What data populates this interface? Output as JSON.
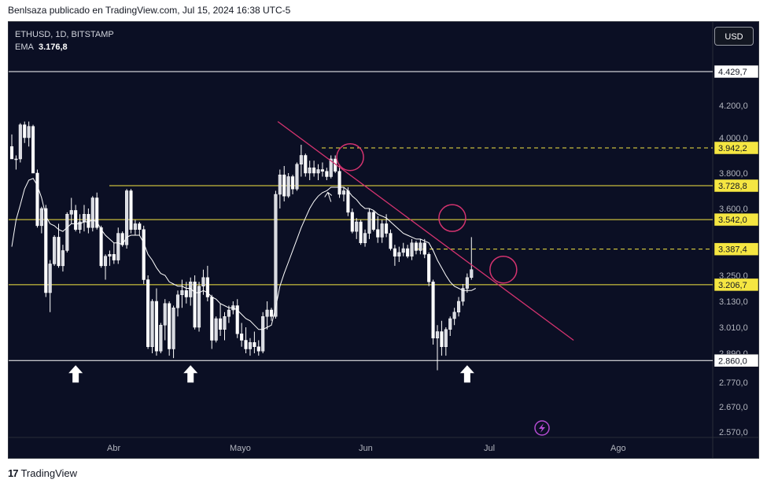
{
  "header": {
    "publisher": "Benlsaza publicado en TradingView.com, Jul 15, 2024 16:38 UTC-5"
  },
  "legend": {
    "symbol": "ETHUSD, 1D, BITSTAMP",
    "indicator": "EMA",
    "indicator_value": "3.176,8"
  },
  "currency_button": "USD",
  "footer": {
    "logo_mark": "17",
    "brand": "TradingView"
  },
  "colors": {
    "background": "#0b0f24",
    "candle": "#ffffff",
    "ema": "#ffffff",
    "resistance": "#f5e642",
    "support_white": "#ffffff",
    "trendline": "#d4336f",
    "circle": "#d4336f"
  },
  "chart_data": {
    "type": "line",
    "title": "ETHUSD, 1D, BITSTAMP",
    "x_labels": [
      "Abr",
      "Mayo",
      "Jun",
      "Jul",
      "Ago"
    ],
    "y_ticks": [
      "4.200,0",
      "4.000,0",
      "3.800,0",
      "3.600,0",
      "3.250,0",
      "3.130,0",
      "3.010,0",
      "2.890,0",
      "2.770,0",
      "2.670,0",
      "2.570,0"
    ],
    "y_tick_values": [
      4200,
      4000,
      3800,
      3600,
      3250,
      3130,
      3010,
      2890,
      2770,
      2670,
      2570
    ],
    "levels": [
      {
        "label": "4.429,7",
        "value": 4429.7,
        "color": "#ffffff",
        "style": "solid"
      },
      {
        "label": "3.942,2",
        "value": 3942.2,
        "color": "#f5e642",
        "style": "dashed"
      },
      {
        "label": "3.728,8",
        "value": 3728.8,
        "color": "#f5e642",
        "style": "solid"
      },
      {
        "label": "3.542,0",
        "value": 3542.0,
        "color": "#f5e642",
        "style": "solid"
      },
      {
        "label": "3.387,4",
        "value": 3387.4,
        "color": "#f5e642",
        "style": "dashed"
      },
      {
        "label": "3.206,7",
        "value": 3206.7,
        "color": "#f5e642",
        "style": "solid"
      },
      {
        "label": "2.860,0",
        "value": 2860.0,
        "color": "#ffffff",
        "style": "solid"
      }
    ],
    "trendline": {
      "from": {
        "x": 62.5,
        "y": 4100
      },
      "to": {
        "x": 132,
        "y": 2950
      }
    },
    "circles": [
      {
        "x": 79.5,
        "y": 3890
      },
      {
        "x": 103.5,
        "y": 3550
      },
      {
        "x": 115.5,
        "y": 3280
      }
    ],
    "support_arrows": [
      {
        "x": 15,
        "y": 2860
      },
      {
        "x": 42,
        "y": 2860
      },
      {
        "x": 107,
        "y": 2860
      }
    ],
    "candles": [
      [
        3950,
        4020,
        3880,
        3880
      ],
      [
        3880,
        3900,
        3820,
        3880
      ],
      [
        3880,
        4090,
        3860,
        4080
      ],
      [
        4080,
        4100,
        3970,
        4000
      ],
      [
        4000,
        4100,
        3950,
        4070
      ],
      [
        4070,
        4080,
        3800,
        3800
      ],
      [
        3800,
        3820,
        3500,
        3510
      ],
      [
        3510,
        3610,
        3470,
        3600
      ],
      [
        3600,
        3620,
        3150,
        3170
      ],
      [
        3170,
        3330,
        3080,
        3310
      ],
      [
        3310,
        3460,
        3300,
        3450
      ],
      [
        3450,
        3520,
        3290,
        3300
      ],
      [
        3300,
        3410,
        3270,
        3380
      ],
      [
        3380,
        3580,
        3370,
        3570
      ],
      [
        3570,
        3660,
        3520,
        3590
      ],
      [
        3590,
        3620,
        3480,
        3490
      ],
      [
        3490,
        3570,
        3470,
        3530
      ],
      [
        3530,
        3620,
        3480,
        3570
      ],
      [
        3570,
        3600,
        3470,
        3500
      ],
      [
        3500,
        3670,
        3480,
        3660
      ],
      [
        3660,
        3690,
        3490,
        3500
      ],
      [
        3500,
        3510,
        3290,
        3300
      ],
      [
        3300,
        3360,
        3230,
        3350
      ],
      [
        3350,
        3380,
        3300,
        3360
      ],
      [
        3360,
        3420,
        3310,
        3330
      ],
      [
        3330,
        3500,
        3310,
        3470
      ],
      [
        3470,
        3480,
        3400,
        3410
      ],
      [
        3410,
        3710,
        3390,
        3700
      ],
      [
        3700,
        3710,
        3470,
        3490
      ],
      [
        3490,
        3540,
        3460,
        3520
      ],
      [
        3520,
        3530,
        3460,
        3490
      ],
      [
        3490,
        3510,
        3210,
        3230
      ],
      [
        3230,
        3250,
        2910,
        2920
      ],
      [
        2920,
        3140,
        2890,
        3130
      ],
      [
        3130,
        3190,
        2880,
        2900
      ],
      [
        2900,
        3030,
        2890,
        3020
      ],
      [
        3020,
        3140,
        2950,
        3120
      ],
      [
        3120,
        3130,
        2880,
        2910
      ],
      [
        2910,
        3110,
        2870,
        3100
      ],
      [
        3100,
        3180,
        3060,
        3160
      ],
      [
        3160,
        3230,
        3100,
        3180
      ],
      [
        3180,
        3220,
        3120,
        3150
      ],
      [
        3150,
        3240,
        3110,
        3220
      ],
      [
        3220,
        3250,
        3000,
        3010
      ],
      [
        3010,
        3220,
        2990,
        3200
      ],
      [
        3200,
        3280,
        3160,
        3240
      ],
      [
        3240,
        3300,
        3130,
        3150
      ],
      [
        3150,
        3160,
        2910,
        2950
      ],
      [
        2950,
        3060,
        2940,
        3050
      ],
      [
        3050,
        3120,
        2970,
        3000
      ],
      [
        3000,
        3080,
        2950,
        3060
      ],
      [
        3060,
        3110,
        3030,
        3090
      ],
      [
        3090,
        3130,
        3070,
        3110
      ],
      [
        3110,
        3140,
        2960,
        2980
      ],
      [
        2980,
        3030,
        2920,
        2950
      ],
      [
        2950,
        3010,
        2890,
        2910
      ],
      [
        2910,
        2960,
        2880,
        2940
      ],
      [
        2940,
        2990,
        2890,
        2920
      ],
      [
        2920,
        2950,
        2880,
        2900
      ],
      [
        2900,
        3080,
        2890,
        3060
      ],
      [
        3060,
        3130,
        3000,
        3090
      ],
      [
        3090,
        3100,
        3040,
        3060
      ],
      [
        3060,
        3700,
        3050,
        3680
      ],
      [
        3680,
        3820,
        3600,
        3790
      ],
      [
        3790,
        3840,
        3640,
        3670
      ],
      [
        3670,
        3800,
        3660,
        3780
      ],
      [
        3780,
        3790,
        3680,
        3710
      ],
      [
        3710,
        3860,
        3700,
        3850
      ],
      [
        3850,
        3960,
        3780,
        3900
      ],
      [
        3900,
        3910,
        3780,
        3800
      ],
      [
        3800,
        3870,
        3760,
        3830
      ],
      [
        3830,
        3870,
        3780,
        3800
      ],
      [
        3800,
        3850,
        3760,
        3820
      ],
      [
        3820,
        3860,
        3780,
        3810
      ],
      [
        3810,
        3830,
        3760,
        3780
      ],
      [
        3780,
        3900,
        3770,
        3880
      ],
      [
        3880,
        3900,
        3800,
        3810
      ],
      [
        3810,
        3850,
        3660,
        3680
      ],
      [
        3680,
        3720,
        3640,
        3700
      ],
      [
        3700,
        3720,
        3560,
        3580
      ],
      [
        3580,
        3600,
        3470,
        3480
      ],
      [
        3480,
        3550,
        3440,
        3530
      ],
      [
        3530,
        3540,
        3410,
        3420
      ],
      [
        3420,
        3490,
        3400,
        3470
      ],
      [
        3470,
        3600,
        3440,
        3580
      ],
      [
        3580,
        3590,
        3480,
        3490
      ],
      [
        3490,
        3560,
        3420,
        3450
      ],
      [
        3450,
        3540,
        3420,
        3520
      ],
      [
        3520,
        3570,
        3450,
        3470
      ],
      [
        3470,
        3490,
        3380,
        3390
      ],
      [
        3390,
        3410,
        3300,
        3350
      ],
      [
        3350,
        3400,
        3320,
        3370
      ],
      [
        3370,
        3420,
        3350,
        3390
      ],
      [
        3390,
        3410,
        3340,
        3350
      ],
      [
        3350,
        3440,
        3330,
        3420
      ],
      [
        3420,
        3430,
        3360,
        3380
      ],
      [
        3380,
        3440,
        3360,
        3420
      ],
      [
        3420,
        3440,
        3340,
        3360
      ],
      [
        3360,
        3370,
        3200,
        3220
      ],
      [
        3220,
        3230,
        2930,
        2960
      ],
      [
        2960,
        3020,
        2820,
        2990
      ],
      [
        2990,
        3040,
        2880,
        2920
      ],
      [
        2920,
        3010,
        2880,
        3000
      ],
      [
        3000,
        3060,
        2970,
        3050
      ],
      [
        3050,
        3100,
        3020,
        3080
      ],
      [
        3080,
        3150,
        3060,
        3130
      ],
      [
        3130,
        3210,
        3110,
        3190
      ],
      [
        3190,
        3260,
        3170,
        3240
      ],
      [
        3240,
        3450,
        3230,
        3280
      ]
    ],
    "ema": [
      3400,
      3540,
      3620,
      3710,
      3760,
      3770,
      3730,
      3660,
      3560,
      3520,
      3510,
      3490,
      3480,
      3500,
      3520,
      3520,
      3520,
      3530,
      3530,
      3540,
      3530,
      3490,
      3460,
      3440,
      3420,
      3420,
      3410,
      3450,
      3460,
      3460,
      3460,
      3420,
      3360,
      3330,
      3290,
      3260,
      3250,
      3220,
      3210,
      3200,
      3200,
      3190,
      3190,
      3170,
      3170,
      3180,
      3170,
      3150,
      3140,
      3120,
      3110,
      3100,
      3100,
      3090,
      3070,
      3050,
      3040,
      3020,
      3000,
      3000,
      3010,
      3020,
      3100,
      3200,
      3260,
      3320,
      3380,
      3440,
      3500,
      3550,
      3600,
      3640,
      3670,
      3690,
      3700,
      3720,
      3720,
      3720,
      3720,
      3700,
      3670,
      3650,
      3620,
      3600,
      3600,
      3590,
      3570,
      3560,
      3550,
      3530,
      3510,
      3490,
      3470,
      3460,
      3450,
      3440,
      3440,
      3430,
      3420,
      3380,
      3330,
      3290,
      3250,
      3220,
      3200,
      3190,
      3180,
      3180,
      3180,
      3190
    ]
  }
}
